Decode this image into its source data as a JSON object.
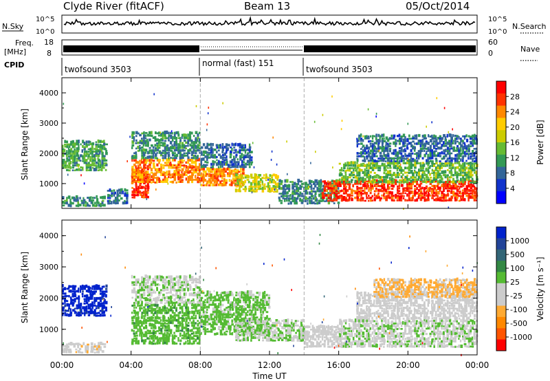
{
  "header": {
    "station": "Clyde River (fitACF)",
    "beam": "Beam 13",
    "date": "05/Oct/2014"
  },
  "nsky": {
    "label": "N.Sky",
    "tick_top": "10^5",
    "tick_bottom": "10^0",
    "right_label": "N.Search",
    "right_tick_top": "10^5",
    "right_tick_bottom": "10^0"
  },
  "freq": {
    "label_line1": "Freq.",
    "label_line2": "[MHz]",
    "tick_top": "18",
    "tick_bottom": "8",
    "right_label": "Nave",
    "right_tick_top": "60",
    "right_tick_bottom": "0"
  },
  "cpid": {
    "label": "CPID",
    "segments": [
      {
        "label": "twofsound 3503",
        "start_hour": 0,
        "end_hour": 8
      },
      {
        "label": "normal (fast) 151",
        "start_hour": 8,
        "end_hour": 14
      },
      {
        "label": "twofsound 3503",
        "start_hour": 14,
        "end_hour": 24
      }
    ]
  },
  "power_scale": {
    "label": "Power [dB]",
    "ticks": [
      "28",
      "24",
      "20",
      "16",
      "12",
      "8",
      "4"
    ],
    "colors": [
      "#ff0000",
      "#ff3300",
      "#ff8800",
      "#ffcc00",
      "#cccc00",
      "#66bb33",
      "#339955",
      "#336699",
      "#1133cc",
      "#0000ff"
    ]
  },
  "velocity_scale": {
    "label": "Velocity [m s⁻¹]",
    "ticks": [
      "1000",
      "500",
      "100",
      "25",
      "-25",
      "-100",
      "-500",
      "-1000"
    ],
    "colors": [
      "#0022cc",
      "#224499",
      "#336677",
      "#338844",
      "#55bb33",
      "#cccccc",
      "#cccccc",
      "#ffaa33",
      "#ff8800",
      "#ff5500",
      "#ff0000"
    ]
  },
  "chart_data": [
    {
      "type": "heatmap",
      "title": "Power",
      "xlabel": "",
      "ylabel": "Slant Range [km]",
      "x_ticks": [
        "00:00",
        "04:00",
        "08:00",
        "12:00",
        "16:00",
        "20:00",
        "00:00"
      ],
      "y_ticks": [
        "1000",
        "2000",
        "3000",
        "4000"
      ],
      "xlim": [
        0,
        24
      ],
      "ylim": [
        180,
        4500
      ],
      "colorbar": {
        "label": "Power [dB]",
        "range": [
          0,
          32
        ]
      },
      "regions": [
        {
          "t": [
            0.0,
            2.6
          ],
          "r": [
            1400,
            2400
          ],
          "v": 12
        },
        {
          "t": [
            0.0,
            2.5
          ],
          "r": [
            220,
            560
          ],
          "v": 10
        },
        {
          "t": [
            2.6,
            3.8
          ],
          "r": [
            300,
            800
          ],
          "v": 8
        },
        {
          "t": [
            4.0,
            5.0
          ],
          "r": [
            500,
            1500
          ],
          "v": 28
        },
        {
          "t": [
            4.0,
            8.0
          ],
          "r": [
            1000,
            1800
          ],
          "v": 24
        },
        {
          "t": [
            4.0,
            8.0
          ],
          "r": [
            1800,
            2700
          ],
          "v": 10
        },
        {
          "t": [
            8.0,
            10.5
          ],
          "r": [
            900,
            1500
          ],
          "v": 24
        },
        {
          "t": [
            8.0,
            11.0
          ],
          "r": [
            1500,
            2300
          ],
          "v": 8
        },
        {
          "t": [
            10.0,
            12.5
          ],
          "r": [
            700,
            1300
          ],
          "v": 18
        },
        {
          "t": [
            12.5,
            16.0
          ],
          "r": [
            300,
            1100
          ],
          "v": 10
        },
        {
          "t": [
            15.0,
            24.0
          ],
          "r": [
            400,
            1100
          ],
          "v": 28
        },
        {
          "t": [
            16.0,
            24.0
          ],
          "r": [
            1000,
            1700
          ],
          "v": 14
        },
        {
          "t": [
            17.0,
            24.0
          ],
          "r": [
            1700,
            2600
          ],
          "v": 8
        }
      ]
    },
    {
      "type": "heatmap",
      "title": "Velocity",
      "xlabel": "Time UT",
      "ylabel": "Slant Range [km]",
      "x_ticks": [
        "00:00",
        "04:00",
        "08:00",
        "12:00",
        "16:00",
        "20:00",
        "00:00"
      ],
      "y_ticks": [
        "1000",
        "2000",
        "3000",
        "4000"
      ],
      "xlim": [
        0,
        24
      ],
      "ylim": [
        180,
        4500
      ],
      "colorbar": {
        "label": "Velocity [m s⁻¹]",
        "range": [
          -1000,
          1000
        ]
      },
      "regions": [
        {
          "t": [
            0.0,
            2.6
          ],
          "r": [
            1400,
            2400
          ],
          "v": 900
        },
        {
          "t": [
            0.0,
            2.5
          ],
          "r": [
            220,
            560
          ],
          "v": -200
        },
        {
          "t": [
            4.0,
            8.0
          ],
          "r": [
            500,
            1800
          ],
          "v": 200
        },
        {
          "t": [
            4.0,
            8.0
          ],
          "r": [
            1800,
            2700
          ],
          "v": 60
        },
        {
          "t": [
            8.0,
            12.0
          ],
          "r": [
            800,
            2200
          ],
          "v": 150
        },
        {
          "t": [
            10.0,
            14.0
          ],
          "r": [
            600,
            1300
          ],
          "v": 80
        },
        {
          "t": [
            14.0,
            16.0
          ],
          "r": [
            400,
            1100
          ],
          "v": -150
        },
        {
          "t": [
            16.0,
            24.0
          ],
          "r": [
            400,
            1300
          ],
          "v": 50
        },
        {
          "t": [
            17.0,
            24.0
          ],
          "r": [
            1300,
            2200
          ],
          "v": 0
        },
        {
          "t": [
            18.0,
            24.0
          ],
          "r": [
            2000,
            2600
          ],
          "v": -300
        }
      ]
    }
  ]
}
